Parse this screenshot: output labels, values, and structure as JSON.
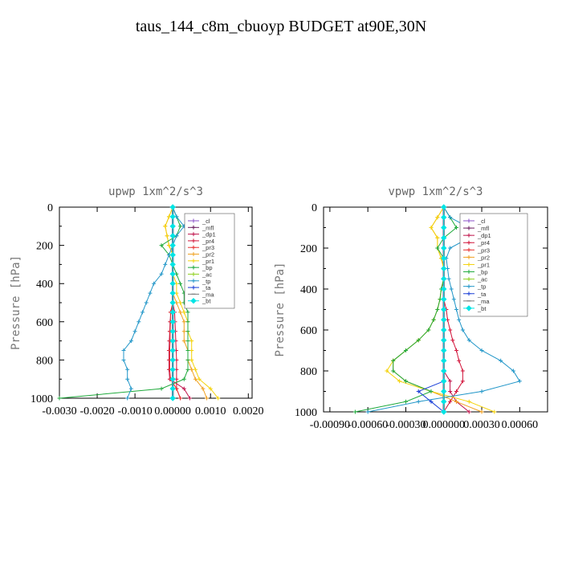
{
  "page_title": "taus_144_c8m_cbuoyp  BUDGET at90E,30N",
  "chart_data": [
    {
      "type": "line",
      "title": "upwp   1xm^2/s^3",
      "ylabel": "Pressure [hPa]",
      "xlim": [
        -0.003,
        0.0021
      ],
      "ylim": [
        1000,
        0
      ],
      "xticks": [
        -0.003,
        -0.002,
        -0.001,
        0.0,
        0.001,
        0.002
      ],
      "xtick_labels": [
        "-0.0030",
        "-0.0020",
        "-0.0010",
        "0.00000",
        "0.0010",
        "0.0020"
      ],
      "yticks": [
        0,
        200,
        400,
        600,
        800,
        1000
      ],
      "ytick_labels": [
        "0",
        "200",
        "400",
        "600",
        "800",
        "1000"
      ],
      "legend_position": "top-right",
      "levels": [
        0,
        50,
        100,
        150,
        200,
        250,
        300,
        350,
        400,
        450,
        500,
        550,
        600,
        650,
        700,
        750,
        800,
        850,
        900,
        950,
        1000
      ],
      "series": [
        {
          "name": "_cl",
          "color": "#8a4fc9",
          "marker": "+",
          "values": [
            0,
            0,
            0,
            0,
            0,
            0,
            0,
            0,
            0,
            0,
            0,
            0,
            0,
            0,
            0,
            0,
            0,
            0,
            0,
            0,
            0
          ]
        },
        {
          "name": "_mfl",
          "color": "#6a1b5e",
          "marker": "+",
          "values": [
            0,
            0,
            0,
            0,
            0,
            0,
            0,
            0,
            0,
            0,
            0,
            0,
            0,
            0,
            0,
            0,
            0,
            0,
            0,
            0,
            0
          ]
        },
        {
          "name": "_dp1",
          "color": "#c0144c",
          "marker": "+",
          "values": [
            0,
            0,
            0,
            0,
            0,
            0,
            0,
            0,
            0,
            0,
            0,
            -5e-05,
            -7e-05,
            -8e-05,
            -9e-05,
            -0.0001,
            -0.0001,
            -0.0001,
            -8e-05,
            0.0003,
            0.00045
          ]
        },
        {
          "name": "_pr4",
          "color": "#d2143a",
          "marker": "+",
          "values": [
            0,
            0,
            0,
            0,
            0,
            0,
            0,
            0,
            0,
            0,
            0,
            5e-05,
            6e-05,
            7e-05,
            8e-05,
            9e-05,
            0.0001,
            0.0001,
            0.0001,
            0.0001,
            0.0002
          ]
        },
        {
          "name": "_pr3",
          "color": "#e83030",
          "marker": "+",
          "values": [
            0,
            0,
            0,
            0,
            0,
            0,
            0,
            0,
            0,
            0,
            0,
            -6e-05,
            -6e-05,
            -7e-05,
            -7e-05,
            -8e-05,
            -8e-05,
            -8e-05,
            -6e-05,
            0.0001,
            0.0002
          ]
        },
        {
          "name": "_pr2",
          "color": "#f0a020",
          "marker": "+",
          "values": [
            0,
            -0.0001,
            -0.0002,
            -0.00015,
            -0.0001,
            0,
            0,
            0,
            0,
            0,
            0.0001,
            0.0002,
            0.0003,
            0.0003,
            0.0003,
            0.0004,
            0.0004,
            0.0005,
            0.0006,
            0.0008,
            0.0009
          ]
        },
        {
          "name": "_pr1",
          "color": "#f4d20a",
          "marker": "+",
          "values": [
            0,
            -0.0001,
            -0.0002,
            -0.00015,
            -0.0001,
            0,
            0,
            0,
            0.0001,
            0.0001,
            0.0002,
            0.0003,
            0.0004,
            0.0004,
            0.0005,
            0.0005,
            0.0005,
            0.0006,
            0.0007,
            0.001,
            0.0012
          ]
        },
        {
          "name": "_bp",
          "color": "#1faa3c",
          "marker": "+",
          "values": [
            0,
            0.0001,
            0.0002,
            0.0001,
            -0.0003,
            -0.0001,
            0,
            0.0001,
            0.0002,
            0.0003,
            0.0003,
            0.0004,
            0.0004,
            0.0004,
            0.0004,
            0.0004,
            0.0004,
            0.0004,
            0.0003,
            -0.0003,
            -0.003
          ]
        },
        {
          "name": "_ac",
          "color": "#8fd020",
          "marker": "+",
          "values": [
            0,
            0,
            0,
            0,
            0,
            0,
            0,
            0,
            0,
            0,
            0,
            0,
            0,
            0,
            0,
            0,
            0,
            0,
            0,
            0,
            0
          ]
        },
        {
          "name": "_tp",
          "color": "#2196c8",
          "marker": "+",
          "values": [
            0,
            0.0001,
            0.0003,
            0.0001,
            0,
            -0.0001,
            -0.0002,
            -0.0003,
            -0.0005,
            -0.0006,
            -0.0007,
            -0.0008,
            -0.0009,
            -0.001,
            -0.0011,
            -0.0013,
            -0.0013,
            -0.0012,
            -0.0012,
            -0.0011,
            -0.0012
          ]
        },
        {
          "name": "_ta",
          "color": "#1a3fd8",
          "marker": "+",
          "values": [
            0,
            0,
            0,
            0,
            0,
            0,
            0,
            0,
            0,
            0,
            0,
            0,
            0,
            0,
            0,
            0,
            0,
            0,
            0,
            0,
            0
          ]
        },
        {
          "name": "_ma",
          "color": "#7a7a7a",
          "marker": "-",
          "values": [
            0,
            0,
            0,
            0,
            0,
            0,
            0,
            0,
            0,
            0,
            0,
            0,
            0,
            0,
            0,
            0,
            0,
            0,
            0,
            0,
            0
          ]
        },
        {
          "name": "_bt",
          "color": "#00e5e5",
          "marker": "diamond",
          "values": [
            0,
            0,
            0,
            0,
            0,
            0,
            0,
            0,
            0,
            0,
            0,
            0,
            0,
            0,
            0,
            0,
            0,
            0,
            0,
            0,
            0
          ]
        }
      ]
    },
    {
      "type": "line",
      "title": "vpwp   1xm^2/s^3",
      "ylabel": "Pressure [hPa]",
      "xlim": [
        -0.00095,
        0.00082
      ],
      "ylim": [
        1000,
        0
      ],
      "xticks": [
        -0.0009,
        -0.0006,
        -0.0003,
        0.0,
        0.0003,
        0.0006
      ],
      "xtick_labels": [
        "-0.00090",
        "-0.00060",
        "-0.00030",
        "0.000000",
        "0.00030",
        "0.00060"
      ],
      "yticks": [
        0,
        200,
        400,
        600,
        800,
        1000
      ],
      "ytick_labels": [
        "0",
        "200",
        "400",
        "600",
        "800",
        "1000"
      ],
      "legend_position": "top-right",
      "levels": [
        0,
        50,
        100,
        150,
        200,
        250,
        300,
        350,
        400,
        450,
        500,
        550,
        600,
        650,
        700,
        750,
        800,
        850,
        900,
        950,
        1000
      ],
      "series": [
        {
          "name": "_cl",
          "color": "#8a4fc9",
          "marker": "+",
          "values": [
            0,
            0,
            0,
            0,
            0,
            0,
            0,
            0,
            0,
            0,
            0,
            0,
            0,
            0,
            0,
            0,
            0,
            0,
            0,
            0,
            0
          ]
        },
        {
          "name": "_mfl",
          "color": "#6a1b5e",
          "marker": "+",
          "values": [
            0,
            0,
            0,
            0,
            0,
            0,
            0,
            0,
            0,
            0,
            0,
            0,
            0,
            0,
            0,
            0,
            0,
            0,
            0,
            0,
            0
          ]
        },
        {
          "name": "_dp1",
          "color": "#c0144c",
          "marker": "+",
          "values": [
            0,
            0,
            0,
            0,
            0,
            0,
            0,
            0,
            0,
            0,
            0,
            0,
            0,
            0,
            0,
            0,
            0,
            5e-05,
            5e-05,
            0.0001,
            0.0002
          ]
        },
        {
          "name": "_pr4",
          "color": "#d2143a",
          "marker": "+",
          "values": [
            0,
            0,
            0,
            0,
            0,
            0,
            0,
            0,
            0,
            0,
            2e-05,
            3e-05,
            5e-05,
            7e-05,
            0.0001,
            0.00012,
            0.00015,
            0.00015,
            0.0001,
            5e-05,
            0
          ]
        },
        {
          "name": "_pr3",
          "color": "#e83030",
          "marker": "+",
          "values": [
            0,
            0,
            0,
            0,
            0,
            0,
            0,
            0,
            0,
            0,
            0,
            0,
            0,
            0,
            0,
            0,
            0,
            0,
            0,
            0,
            0
          ]
        },
        {
          "name": "_pr2",
          "color": "#f0a020",
          "marker": "+",
          "values": [
            0,
            -5e-05,
            -0.0001,
            -5e-05,
            -5e-05,
            -2e-05,
            0,
            0,
            -2e-05,
            -3e-05,
            -5e-05,
            -8e-05,
            -0.00012,
            -0.0002,
            -0.0003,
            -0.0004,
            -0.0004,
            -0.0003,
            -0.0001,
            0.0001,
            0.0003
          ]
        },
        {
          "name": "_pr1",
          "color": "#f4d20a",
          "marker": "+",
          "values": [
            0,
            -5e-05,
            -0.0001,
            -5e-05,
            -5e-05,
            -2e-05,
            0,
            0,
            -2e-05,
            -3e-05,
            -5e-05,
            -8e-05,
            -0.00012,
            -0.0002,
            -0.0003,
            -0.0004,
            -0.00045,
            -0.00035,
            -0.0001,
            0.0002,
            0.0004
          ]
        },
        {
          "name": "_bp",
          "color": "#1faa3c",
          "marker": "+",
          "values": [
            0,
            5e-05,
            0.0001,
            0,
            -5e-05,
            0,
            0,
            0,
            -2e-05,
            -3e-05,
            -5e-05,
            -8e-05,
            -0.00012,
            -0.0002,
            -0.0003,
            -0.0004,
            -0.0004,
            -0.0003,
            -0.0001,
            -0.0003,
            -0.0007
          ]
        },
        {
          "name": "_ac",
          "color": "#8fd020",
          "marker": "+",
          "values": [
            0,
            0,
            0,
            0,
            0,
            0,
            0,
            0,
            0,
            0,
            0,
            0,
            0,
            0,
            0,
            0,
            0,
            0,
            0,
            0,
            0
          ]
        },
        {
          "name": "_tp",
          "color": "#2196c8",
          "marker": "+",
          "values": [
            0,
            5e-05,
            0.0002,
            0.0002,
            5e-05,
            2e-05,
            3e-05,
            4e-05,
            6e-05,
            8e-05,
            0.0001,
            0.00012,
            0.00015,
            0.0002,
            0.0003,
            0.00045,
            0.00055,
            0.0006,
            0.0003,
            -0.0002,
            -0.0006
          ]
        },
        {
          "name": "_ta",
          "color": "#1a3fd8",
          "marker": "+",
          "values": [
            0,
            0,
            0,
            0,
            0,
            0,
            0,
            0,
            0,
            0,
            0,
            0,
            0,
            0,
            0,
            0,
            0,
            0,
            -0.0002,
            -0.0001,
            0
          ]
        },
        {
          "name": "_ma",
          "color": "#7a7a7a",
          "marker": "-",
          "values": [
            0,
            0,
            0,
            0,
            0,
            0,
            0,
            0,
            0,
            0,
            0,
            0,
            0,
            0,
            0,
            0,
            0,
            0,
            0,
            0,
            0
          ]
        },
        {
          "name": "_bt",
          "color": "#00e5e5",
          "marker": "diamond",
          "values": [
            0,
            0,
            0,
            0,
            0,
            0,
            0,
            0,
            0,
            0,
            0,
            0,
            0,
            0,
            0,
            0,
            0,
            0,
            0,
            0,
            0
          ]
        }
      ]
    }
  ]
}
